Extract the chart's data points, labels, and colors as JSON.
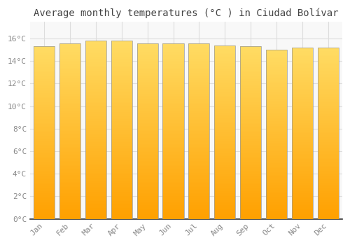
{
  "title": "Average monthly temperatures (°C ) in Ciudad Bolívar",
  "months": [
    "Jan",
    "Feb",
    "Mar",
    "Apr",
    "May",
    "Jun",
    "Jul",
    "Aug",
    "Sep",
    "Oct",
    "Nov",
    "Dec"
  ],
  "temperatures": [
    15.3,
    15.6,
    15.8,
    15.8,
    15.6,
    15.6,
    15.6,
    15.4,
    15.3,
    15.0,
    15.2,
    15.2
  ],
  "bar_color": "#FFA500",
  "bar_edge_color": "#999999",
  "background_color": "#FFFFFF",
  "plot_bg_color": "#F8F8F8",
  "grid_color": "#DDDDDD",
  "tick_label_color": "#888888",
  "title_color": "#444444",
  "ylim": [
    0,
    17.5
  ],
  "yticks": [
    0,
    2,
    4,
    6,
    8,
    10,
    12,
    14,
    16
  ],
  "ytick_labels": [
    "0°C",
    "2°C",
    "4°C",
    "6°C",
    "8°C",
    "10°C",
    "12°C",
    "14°C",
    "16°C"
  ],
  "title_fontsize": 10,
  "tick_fontsize": 8,
  "bar_width": 0.82,
  "figsize": [
    5.0,
    3.5
  ],
  "dpi": 100
}
